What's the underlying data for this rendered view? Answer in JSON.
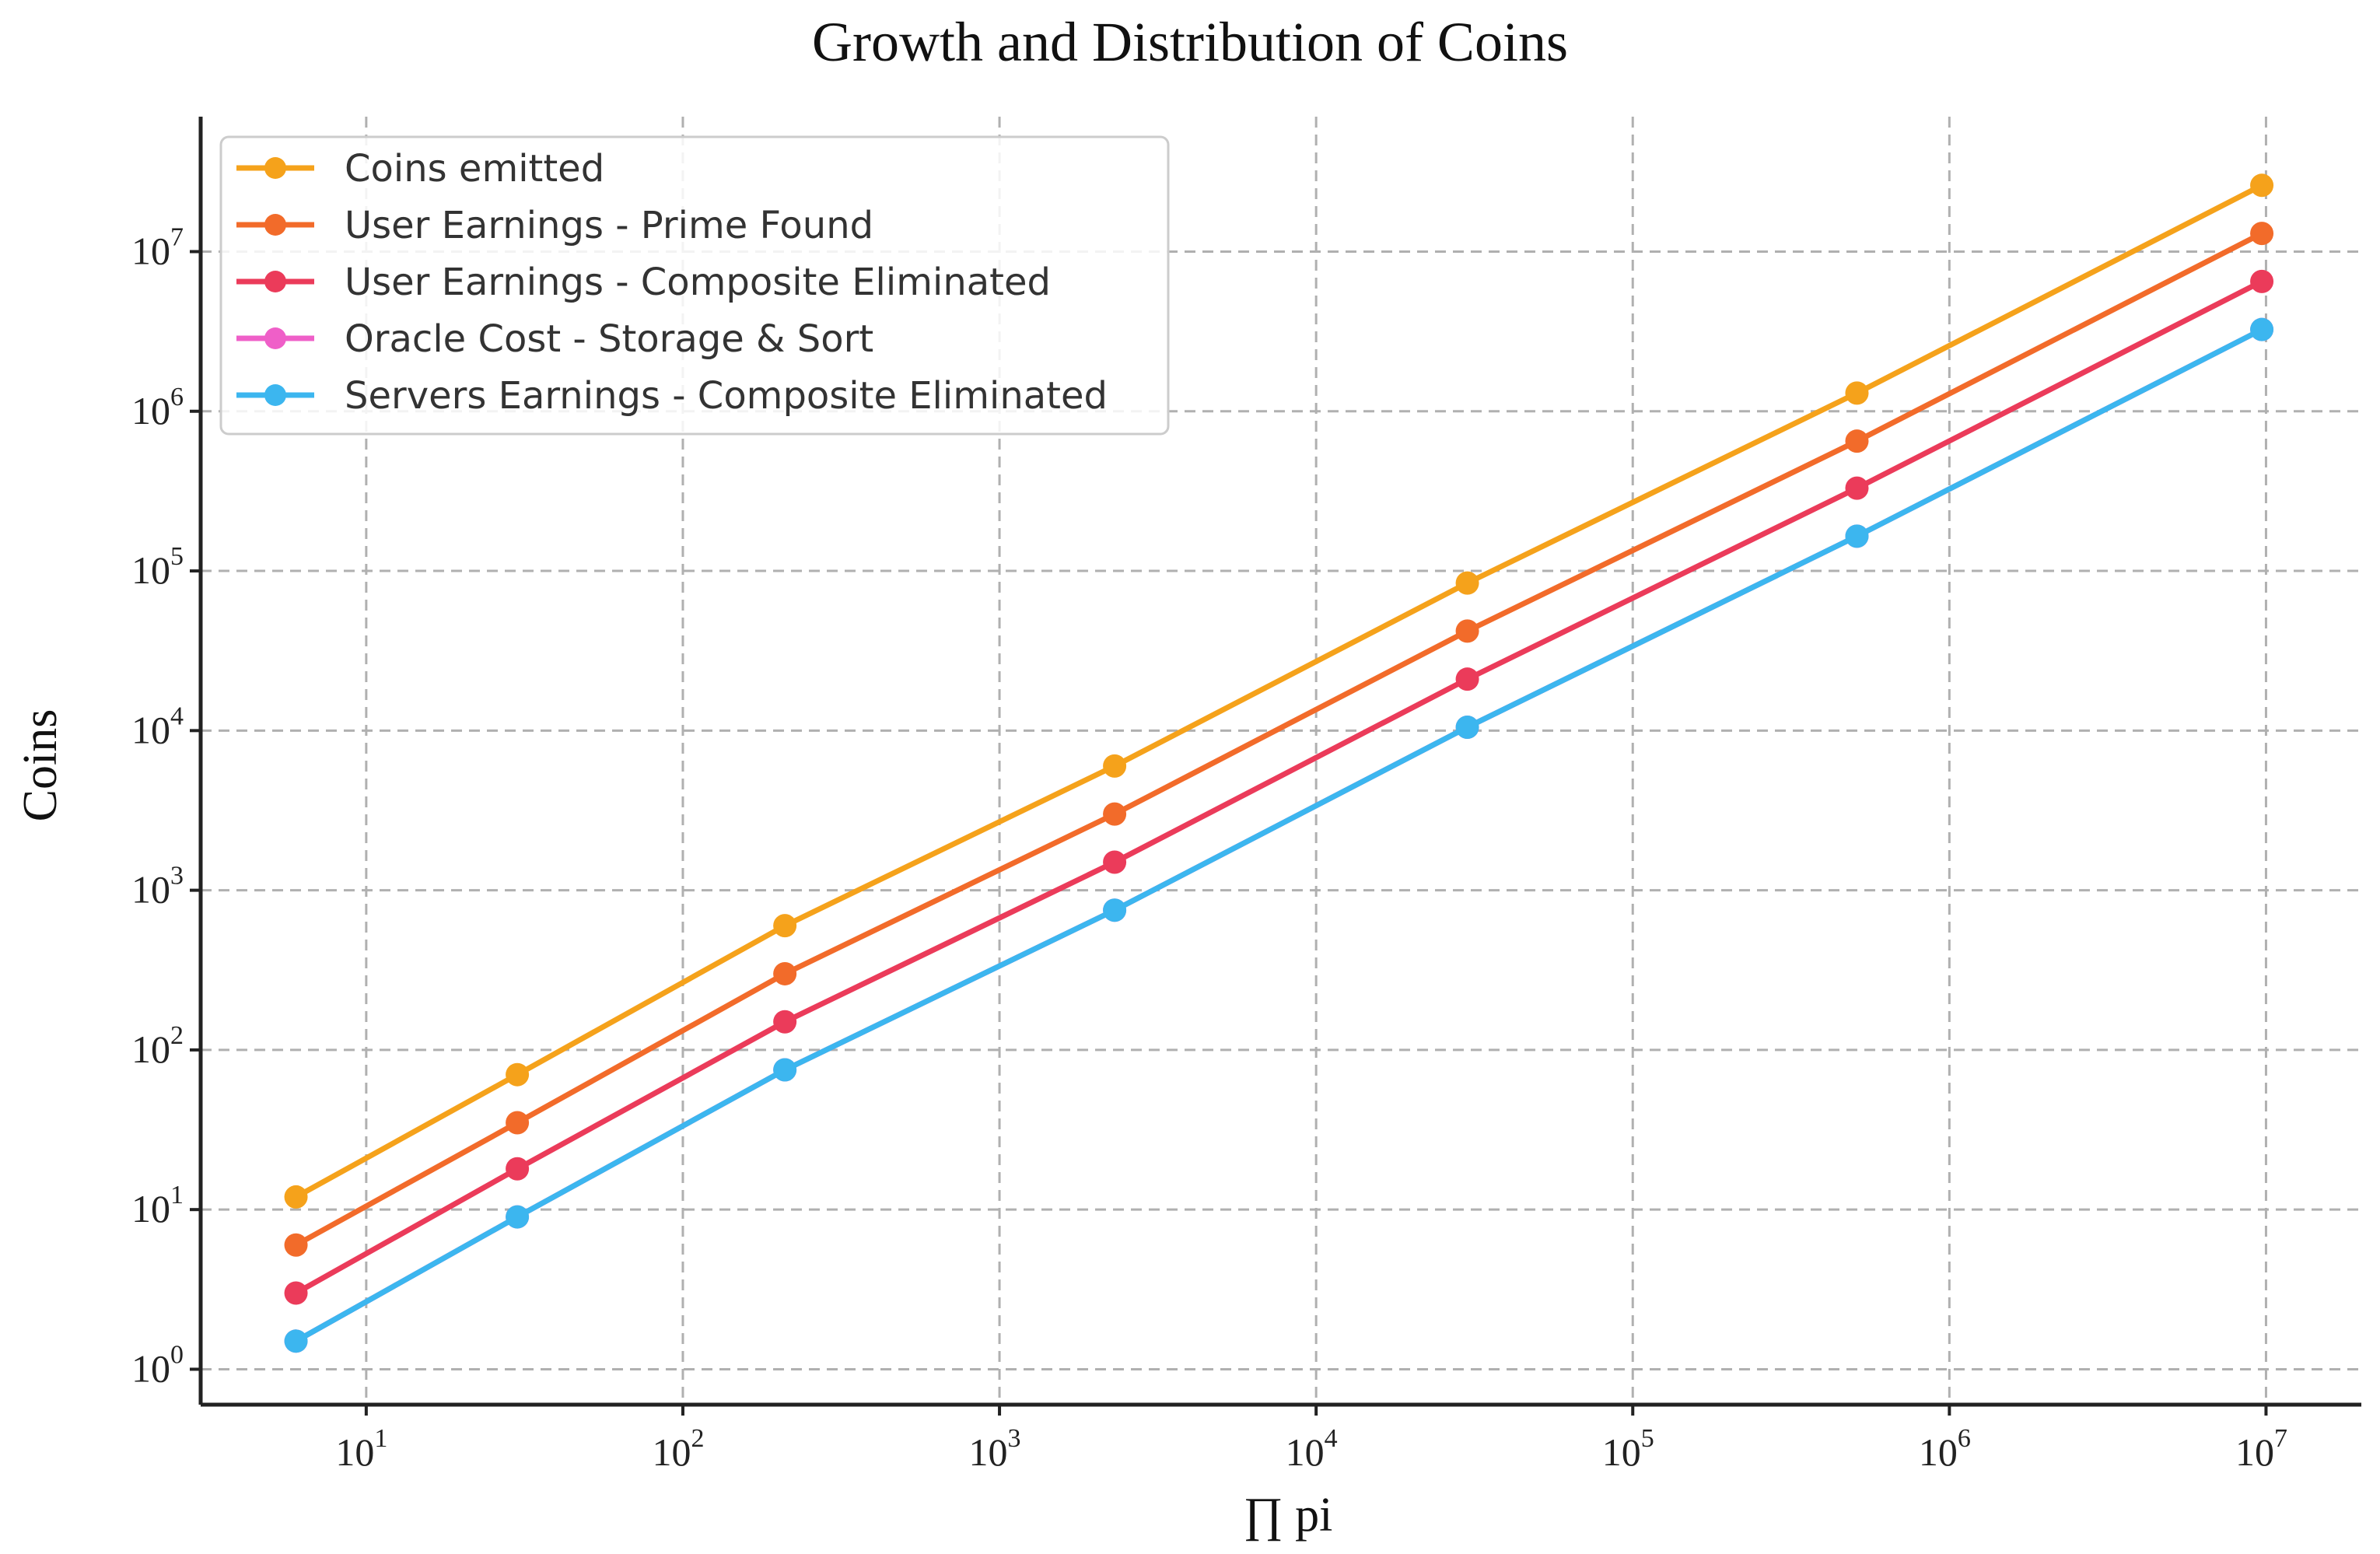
{
  "chart_data": {
    "type": "line",
    "title": "Growth and Distribution of Coins",
    "xlabel": "∏ pi",
    "ylabel": "Coins",
    "xscale": "log",
    "yscale": "log",
    "xlim": [
      3,
      20000000
    ],
    "ylim": [
      0.6,
      70000000
    ],
    "grid": true,
    "legend_position": "top-left",
    "x_ticks": [
      {
        "value": 10,
        "base": "10",
        "exp": "1"
      },
      {
        "value": 100,
        "base": "10",
        "exp": "2"
      },
      {
        "value": 1000,
        "base": "10",
        "exp": "3"
      },
      {
        "value": 10000,
        "base": "10",
        "exp": "4"
      },
      {
        "value": 100000,
        "base": "10",
        "exp": "5"
      },
      {
        "value": 1000000,
        "base": "10",
        "exp": "6"
      },
      {
        "value": 10000000,
        "base": "10",
        "exp": "7"
      }
    ],
    "y_ticks": [
      {
        "value": 1,
        "base": "10",
        "exp": "0"
      },
      {
        "value": 10,
        "base": "10",
        "exp": "1"
      },
      {
        "value": 100,
        "base": "10",
        "exp": "2"
      },
      {
        "value": 1000,
        "base": "10",
        "exp": "3"
      },
      {
        "value": 10000,
        "base": "10",
        "exp": "4"
      },
      {
        "value": 100000,
        "base": "10",
        "exp": "5"
      },
      {
        "value": 1000000,
        "base": "10",
        "exp": "6"
      },
      {
        "value": 10000000,
        "base": "10",
        "exp": "7"
      }
    ],
    "x": [
      6,
      30,
      210,
      2310,
      30030,
      510510,
      9699690
    ],
    "series": [
      {
        "name": "Coins emitted",
        "color": "#f5a21b",
        "values": [
          12,
          70,
          600,
          6000,
          84000,
          1300000,
          26000000
        ]
      },
      {
        "name": "User Earnings - Prime Found",
        "color": "#f26b2a",
        "values": [
          6,
          35,
          300,
          3000,
          42000,
          650000,
          13000000
        ]
      },
      {
        "name": "User Earnings - Composite Eliminated",
        "color": "#eb3b5a",
        "values": [
          3,
          18,
          150,
          1500,
          21000,
          330000,
          6500000
        ]
      },
      {
        "name": "Oracle Cost - Storage & Sort",
        "color": "#ef5fc8",
        "values": [
          1.5,
          9,
          75,
          750,
          10500,
          165000,
          3250000
        ]
      },
      {
        "name": "Servers Earnings - Composite Eliminated",
        "color": "#3cb6ef",
        "values": [
          1.5,
          9,
          75,
          750,
          10500,
          165000,
          3250000
        ]
      }
    ]
  }
}
